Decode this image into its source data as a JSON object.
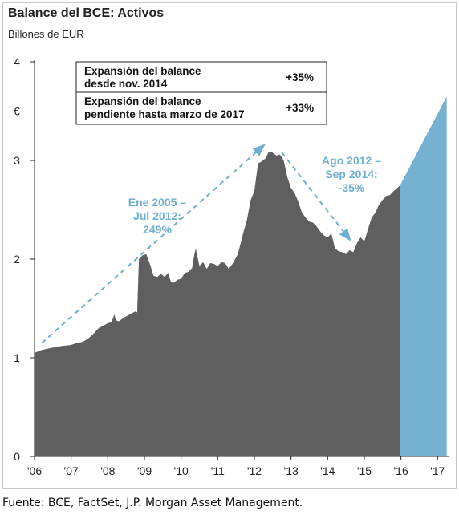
{
  "chart_data": {
    "type": "area",
    "title": "Balance del BCE: Activos",
    "subtitle": "Billones de EUR",
    "ylabel": "€",
    "ylim": [
      0,
      4
    ],
    "xlim": [
      2006.0,
      2017.3
    ],
    "x_tick_labels": [
      "'06",
      "'07",
      "'08",
      "'09",
      "'10",
      "'11",
      "'12",
      "'13",
      "'14",
      "'15",
      "'16",
      "'17"
    ],
    "x_tick_values": [
      2006,
      2007,
      2008,
      2009,
      2010,
      2011,
      2012,
      2013,
      2014,
      2015,
      2016,
      2017
    ],
    "y_tick_labels": [
      "0",
      "1",
      "2",
      "3",
      "4"
    ],
    "y_tick_values": [
      0,
      1,
      2,
      3,
      4
    ],
    "series": [
      {
        "kind": "historical",
        "color": "#5f5f5f",
        "x": [
          2006.0,
          2006.2,
          2006.45,
          2006.6,
          2006.75,
          2007.0,
          2007.15,
          2007.3,
          2007.45,
          2007.6,
          2007.75,
          2007.9,
          2008.0,
          2008.1,
          2008.18,
          2008.22,
          2008.3,
          2008.45,
          2008.6,
          2008.75,
          2008.8,
          2008.85,
          2008.95,
          2009.05,
          2009.15,
          2009.25,
          2009.35,
          2009.45,
          2009.55,
          2009.65,
          2009.72,
          2009.8,
          2009.9,
          2010.0,
          2010.1,
          2010.2,
          2010.3,
          2010.35,
          2010.4,
          2010.5,
          2010.6,
          2010.7,
          2010.8,
          2010.9,
          2011.0,
          2011.1,
          2011.2,
          2011.3,
          2011.4,
          2011.55,
          2011.7,
          2011.8,
          2011.9,
          2012.0,
          2012.1,
          2012.2,
          2012.3,
          2012.4,
          2012.5,
          2012.6,
          2012.7,
          2012.8,
          2012.9,
          2013.0,
          2013.1,
          2013.2,
          2013.3,
          2013.4,
          2013.5,
          2013.6,
          2013.7,
          2013.8,
          2013.9,
          2014.0,
          2014.1,
          2014.2,
          2014.3,
          2014.4,
          2014.5,
          2014.6,
          2014.7,
          2014.8,
          2014.9,
          2015.0,
          2015.1,
          2015.2,
          2015.3,
          2015.4,
          2015.5,
          2015.6,
          2015.7,
          2015.8,
          2015.9,
          2015.98
        ],
        "values": [
          1.05,
          1.08,
          1.1,
          1.11,
          1.12,
          1.13,
          1.15,
          1.16,
          1.19,
          1.24,
          1.3,
          1.33,
          1.35,
          1.36,
          1.44,
          1.38,
          1.37,
          1.41,
          1.44,
          1.47,
          1.46,
          2.0,
          2.04,
          2.05,
          1.95,
          1.83,
          1.82,
          1.85,
          1.82,
          1.86,
          1.77,
          1.76,
          1.79,
          1.8,
          1.86,
          1.87,
          1.91,
          2.02,
          2.11,
          1.93,
          1.97,
          1.9,
          1.96,
          1.95,
          1.93,
          1.97,
          1.96,
          1.9,
          1.95,
          2.05,
          2.27,
          2.4,
          2.6,
          2.69,
          2.97,
          2.99,
          3.02,
          3.09,
          3.08,
          3.05,
          3.06,
          3.0,
          2.83,
          2.72,
          2.67,
          2.58,
          2.47,
          2.42,
          2.38,
          2.37,
          2.33,
          2.28,
          2.24,
          2.22,
          2.26,
          2.11,
          2.08,
          2.07,
          2.05,
          2.09,
          2.07,
          2.16,
          2.22,
          2.18,
          2.3,
          2.42,
          2.47,
          2.55,
          2.6,
          2.64,
          2.65,
          2.69,
          2.72,
          2.75
        ]
      },
      {
        "kind": "projection",
        "color": "#75b2d2",
        "x": [
          2015.98,
          2017.25
        ],
        "values": [
          2.75,
          3.65
        ]
      }
    ],
    "annotations": [
      {
        "id": "rise",
        "lines": [
          "Ene 2005 –",
          "Jul 2012:",
          "249%"
        ],
        "arrow_from": [
          2006.2,
          1.15
        ],
        "arrow_to": [
          2012.25,
          3.15
        ]
      },
      {
        "id": "fall",
        "lines": [
          "Ago 2012 –",
          "Sep 2014:",
          "-35%"
        ],
        "arrow_from": [
          2012.75,
          3.08
        ],
        "arrow_to": [
          2014.6,
          2.2
        ]
      }
    ],
    "table": [
      {
        "label_lines": [
          "Expansión del balance",
          "desde nov. 2014"
        ],
        "value": "+35%"
      },
      {
        "label_lines": [
          "Expansión del balance",
          "pendiente hasta marzo de 2017"
        ],
        "value": "+33%"
      }
    ]
  },
  "footer": {
    "source": "Fuente: BCE, FactSet, J.P. Morgan Asset Management."
  }
}
